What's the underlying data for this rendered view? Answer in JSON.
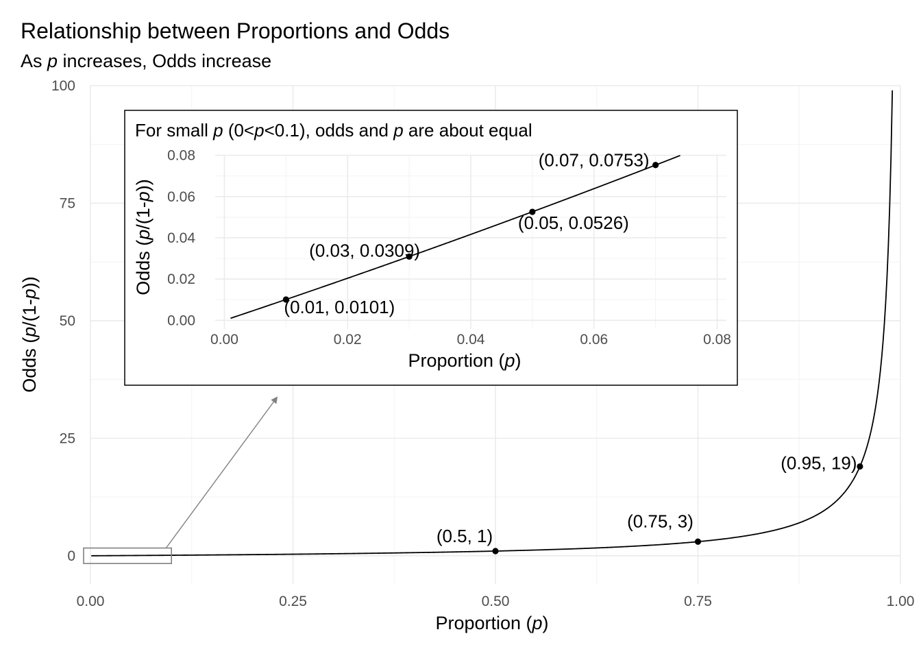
{
  "chart_data": [
    {
      "type": "line",
      "title": "Relationship between Proportions and Odds",
      "subtitle_parts": [
        "As ",
        "p",
        " increases, Odds increase"
      ],
      "xlabel_parts": [
        "Proportion (",
        "p",
        ")"
      ],
      "ylabel_parts": [
        "Odds (",
        "p",
        "/(1-",
        "p",
        "))"
      ],
      "xlim": [
        0,
        1
      ],
      "ylim": [
        -6,
        100
      ],
      "x_ticks": [
        0,
        0.25,
        0.5,
        0.75,
        1
      ],
      "x_tick_labels": [
        "0.00",
        "0.25",
        "0.50",
        "0.75",
        "1.00"
      ],
      "y_ticks": [
        0,
        25,
        50,
        75,
        100
      ],
      "y_tick_labels": [
        "0",
        "25",
        "50",
        "75",
        "100"
      ],
      "grid": true,
      "function": "p/(1-p)",
      "curve_x_range": [
        0.001,
        0.99
      ],
      "points": [
        {
          "x": 0.5,
          "y": 1,
          "label": "(0.5, 1)"
        },
        {
          "x": 0.75,
          "y": 3,
          "label": "(0.75, 3)"
        },
        {
          "x": 0.95,
          "y": 19,
          "label": "(0.95, 19)"
        }
      ],
      "zoom_box": {
        "x": [
          0,
          0.1
        ],
        "y": [
          -1.5,
          1.5
        ]
      }
    },
    {
      "type": "line",
      "title_parts": [
        "For small ",
        "p",
        " (0<",
        "p",
        "<0.1), odds and ",
        "p",
        " are about equal"
      ],
      "xlabel_parts": [
        "Proportion (",
        "p",
        ")"
      ],
      "ylabel_parts": [
        "Odds (",
        "p",
        "/(1-",
        "p",
        "))"
      ],
      "xlim": [
        -0.0015,
        0.0815
      ],
      "ylim": [
        -0.0042,
        0.0802
      ],
      "x_ticks": [
        0,
        0.02,
        0.04,
        0.06,
        0.08
      ],
      "x_tick_labels": [
        "0.00",
        "0.02",
        "0.04",
        "0.06",
        "0.08"
      ],
      "y_ticks": [
        0,
        0.02,
        0.04,
        0.06,
        0.08
      ],
      "y_tick_labels": [
        "0.00",
        "0.02",
        "0.04",
        "0.06",
        "0.08"
      ],
      "grid": true,
      "function": "p/(1-p)",
      "curve_x_range": [
        0.001,
        0.074
      ],
      "points": [
        {
          "x": 0.01,
          "y": 0.0101,
          "label": "(0.01, 0.0101)"
        },
        {
          "x": 0.03,
          "y": 0.0309,
          "label": "(0.03, 0.0309)"
        },
        {
          "x": 0.05,
          "y": 0.0526,
          "label": "(0.05, 0.0526)"
        },
        {
          "x": 0.07,
          "y": 0.0753,
          "label": "(0.07, 0.0753)"
        }
      ]
    }
  ],
  "colors": {
    "curve": "#000000",
    "grid": "#ebebeb",
    "tick_text": "#4d4d4d",
    "arrow": "#808080",
    "zoom_box": "#808080"
  }
}
